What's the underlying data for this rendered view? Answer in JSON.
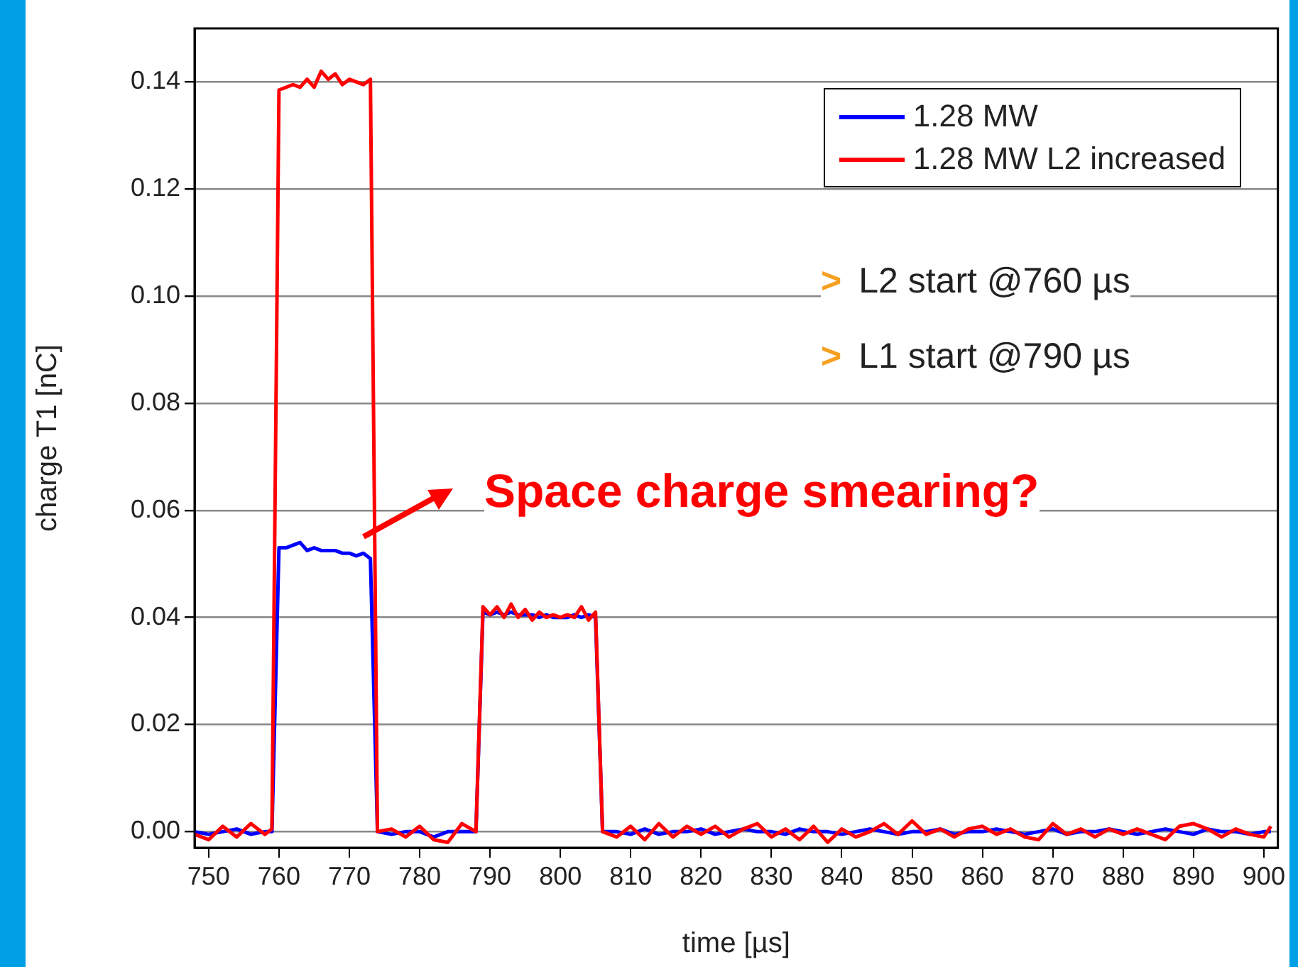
{
  "chart_data": {
    "type": "line",
    "xlabel": "time [µs]",
    "ylabel": "charge T1 [nC]",
    "x": [
      748,
      750,
      752,
      754,
      756,
      758,
      759,
      760,
      761,
      762,
      763,
      764,
      765,
      766,
      767,
      768,
      769,
      770,
      771,
      772,
      773,
      774,
      776,
      778,
      780,
      782,
      784,
      786,
      788,
      789,
      790,
      791,
      792,
      793,
      794,
      795,
      796,
      797,
      798,
      799,
      800,
      801,
      802,
      803,
      804,
      805,
      806,
      808,
      810,
      812,
      814,
      816,
      818,
      820,
      822,
      824,
      826,
      828,
      830,
      832,
      834,
      836,
      838,
      840,
      842,
      844,
      846,
      848,
      850,
      852,
      854,
      856,
      858,
      860,
      862,
      864,
      866,
      868,
      870,
      872,
      874,
      876,
      878,
      880,
      882,
      884,
      886,
      888,
      890,
      892,
      894,
      896,
      898,
      900,
      901
    ],
    "series": [
      {
        "name": "1.28 MW",
        "color": "#0000ff",
        "values": [
          0,
          -0.0005,
          0,
          0.0005,
          -0.0005,
          0,
          0,
          0.053,
          0.053,
          0.0535,
          0.054,
          0.0525,
          0.053,
          0.0525,
          0.0525,
          0.0525,
          0.052,
          0.052,
          0.0515,
          0.052,
          0.051,
          0,
          -0.0005,
          0,
          0,
          -0.001,
          0,
          0,
          0,
          0.041,
          0.0405,
          0.041,
          0.0405,
          0.041,
          0.0405,
          0.0405,
          0.0405,
          0.04,
          0.0405,
          0.04,
          0.04,
          0.04,
          0.0405,
          0.04,
          0.0405,
          0.04,
          0,
          0,
          -0.0005,
          0.0005,
          -0.0005,
          0,
          0,
          0.0005,
          -0.0005,
          0,
          0.0005,
          0,
          0,
          -0.0005,
          0.0005,
          0,
          0,
          -0.0005,
          0,
          0.0005,
          0,
          -0.0005,
          0,
          0,
          0.0005,
          -0.0005,
          0,
          0,
          0.0005,
          0,
          -0.0005,
          0,
          0.0005,
          -0.0005,
          0,
          0,
          0.0005,
          0,
          -0.0005,
          0,
          0.0005,
          0,
          -0.0005,
          0.0005,
          0,
          0,
          -0.0005,
          0,
          0
        ]
      },
      {
        "name": "1.28 MW L2 increased",
        "color": "#ff0000",
        "values": [
          -0.0005,
          -0.0015,
          0.001,
          -0.001,
          0.0015,
          -0.0005,
          0.0005,
          0.1385,
          0.139,
          0.1395,
          0.139,
          0.1405,
          0.139,
          0.142,
          0.1405,
          0.1415,
          0.1395,
          0.1405,
          0.14,
          0.1395,
          0.1405,
          0,
          0.0005,
          -0.001,
          0.001,
          -0.0015,
          -0.002,
          0.0015,
          0,
          0.042,
          0.0405,
          0.042,
          0.04,
          0.0425,
          0.04,
          0.0415,
          0.0395,
          0.041,
          0.04,
          0.0405,
          0.04,
          0.0405,
          0.04,
          0.042,
          0.0395,
          0.041,
          0,
          -0.001,
          0.001,
          -0.0015,
          0.0015,
          -0.001,
          0.001,
          -0.0005,
          0.001,
          -0.001,
          0.0005,
          0.0015,
          -0.001,
          0.0005,
          -0.0015,
          0.001,
          -0.002,
          0.0005,
          -0.001,
          0,
          0.0015,
          -0.0005,
          0.002,
          -0.0005,
          0.0005,
          -0.001,
          0.0005,
          0.001,
          -0.0005,
          0.0005,
          -0.001,
          -0.0015,
          0.0015,
          -0.0005,
          0.0005,
          -0.001,
          0.0005,
          -0.0005,
          0.0005,
          -0.0005,
          -0.0015,
          0.001,
          0.0015,
          0.0005,
          -0.001,
          0.0005,
          -0.0005,
          -0.001,
          0.001
        ]
      }
    ],
    "xlim": [
      748,
      902
    ],
    "xticks": [
      750,
      760,
      770,
      780,
      790,
      800,
      810,
      820,
      830,
      840,
      850,
      860,
      870,
      880,
      890,
      900
    ],
    "ylim": [
      -0.003,
      0.15
    ],
    "yticks": [
      {
        "value": 0,
        "label": "0.00"
      },
      {
        "value": 0.02,
        "label": "0.02"
      },
      {
        "value": 0.04,
        "label": "0.04"
      },
      {
        "value": 0.06,
        "label": "0.06"
      },
      {
        "value": 0.08,
        "label": "0.08"
      },
      {
        "value": 0.1,
        "label": "0.10"
      },
      {
        "value": 0.12,
        "label": "0.12"
      },
      {
        "value": 0.14,
        "label": "0.14"
      }
    ],
    "grid": "y",
    "legend": "top right",
    "marker": "none",
    "line_style": "solid",
    "annotations": [
      "> L2 start @760 µs",
      "> L1 start @790 µs",
      "Space charge smearing?"
    ]
  }
}
